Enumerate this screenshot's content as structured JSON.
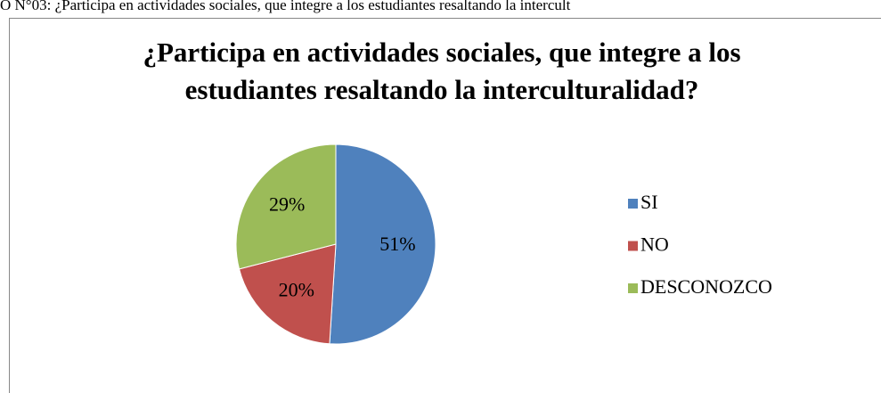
{
  "caption": "O N°03: ¿Participa en actividades sociales, que integre a los estudiantes resaltando la intercult",
  "chart_data": {
    "type": "pie",
    "title": "¿Participa en actividades sociales, que integre a los estudiantes resaltando la interculturalidad?",
    "categories": [
      "SI",
      "NO",
      "DESCONOZCO"
    ],
    "values": [
      51,
      20,
      29
    ],
    "value_labels": [
      "51%",
      "20%",
      "29%"
    ],
    "colors": [
      "#4f81bd",
      "#c0504d",
      "#9bbb59"
    ],
    "legend": "right"
  }
}
